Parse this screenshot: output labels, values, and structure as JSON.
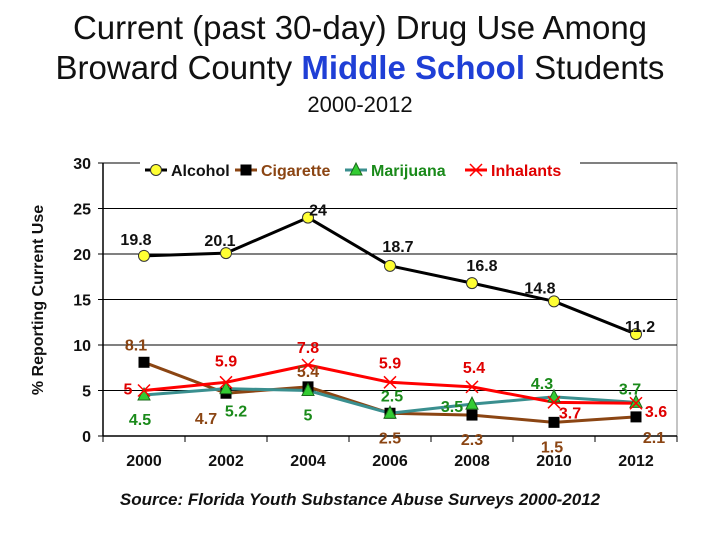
{
  "title": {
    "line1": "Current (past 30-day) Drug Use Among",
    "line2_before": "Broward County ",
    "line2_highlight": "Middle School",
    "line2_after": " Students",
    "subtitle": "2000-2012"
  },
  "source": "Source: Florida Youth Substance Abuse Surveys 2000-2012",
  "colors": {
    "alcohol_line": "#000000",
    "alcohol_marker": "#ffff33",
    "cigarette_line": "#8b4513",
    "cigarette_marker": "#000000",
    "marijuana_line": "#3a8f8f",
    "marijuana_marker": "#33cc33",
    "inhalants_line": "#ff0000",
    "highlight_title": "#1f3fd6"
  },
  "chart_data": {
    "type": "line",
    "x": [
      "2000",
      "2002",
      "2004",
      "2006",
      "2008",
      "2010",
      "2012"
    ],
    "ylabel": "% Reporting Current Use",
    "ylim": [
      0,
      30
    ],
    "yticks": [
      "0",
      "5",
      "10",
      "15",
      "20",
      "25",
      "30"
    ],
    "grid": true,
    "legend": "top-inside",
    "series": [
      {
        "name": "Alcohol",
        "values": [
          19.8,
          20.1,
          24,
          18.7,
          16.8,
          14.8,
          11.2
        ],
        "labels": [
          "19.8",
          "20.1",
          "24",
          "18.7",
          "16.8",
          "14.8",
          "11.2"
        ],
        "marker": "circle"
      },
      {
        "name": "Cigarette",
        "values": [
          8.1,
          4.7,
          5.4,
          2.5,
          2.3,
          1.5,
          2.1
        ],
        "labels": [
          "8.1",
          "4.7",
          "5.4",
          "2.5",
          "2.3",
          "1.5",
          "2.1"
        ],
        "marker": "square"
      },
      {
        "name": "Marijuana",
        "values": [
          4.5,
          5.2,
          5,
          2.5,
          3.5,
          4.3,
          3.7
        ],
        "labels": [
          "4.5",
          "5.2",
          "5",
          "2.5",
          "3.5",
          "4.3",
          "3.7"
        ],
        "marker": "triangle"
      },
      {
        "name": "Inhalants",
        "values": [
          5,
          5.9,
          7.8,
          5.9,
          5.4,
          3.7,
          3.6
        ],
        "labels": [
          "5",
          "5.9",
          "7.8",
          "5.9",
          "5.4",
          "3.7",
          "3.6"
        ],
        "marker": "x"
      }
    ]
  }
}
